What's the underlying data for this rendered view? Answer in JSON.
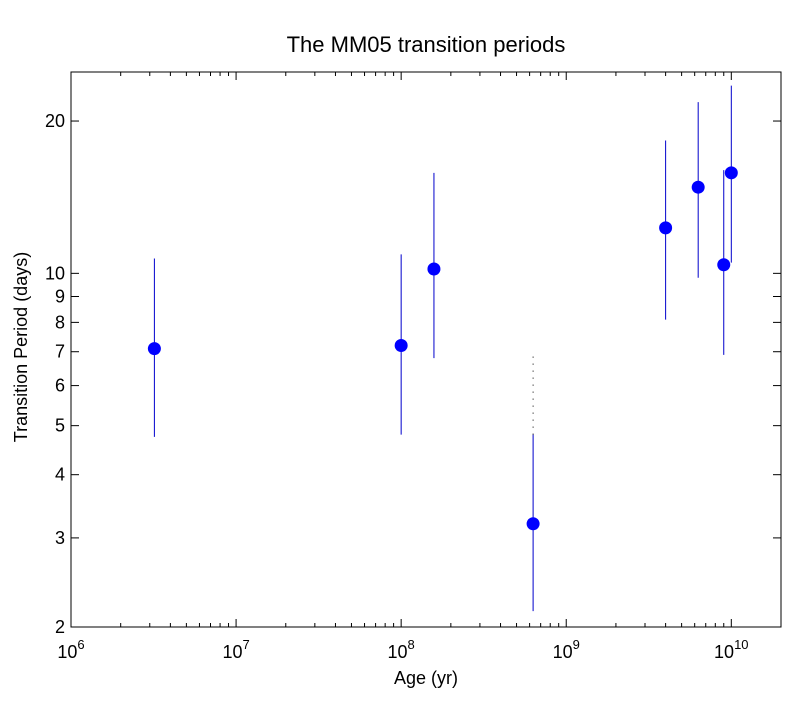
{
  "chart_data": {
    "type": "scatter",
    "title": "The MM05 transition periods",
    "xlabel": "Age (yr)",
    "ylabel": "Transition Period (days)",
    "x_scale": "log",
    "y_scale": "log",
    "xlim": [
      1000000,
      20000000000
    ],
    "ylim": [
      2,
      25
    ],
    "x_ticks": [
      {
        "value": 1000000,
        "base": "10",
        "exp": "6"
      },
      {
        "value": 10000000,
        "base": "10",
        "exp": "7"
      },
      {
        "value": 100000000,
        "base": "10",
        "exp": "8"
      },
      {
        "value": 1000000000,
        "base": "10",
        "exp": "9"
      },
      {
        "value": 10000000000,
        "base": "10",
        "exp": "10"
      }
    ],
    "y_ticks": [
      {
        "value": 2,
        "label": "2"
      },
      {
        "value": 3,
        "label": "3"
      },
      {
        "value": 4,
        "label": "4"
      },
      {
        "value": 5,
        "label": "5"
      },
      {
        "value": 6,
        "label": "6"
      },
      {
        "value": 7,
        "label": "7"
      },
      {
        "value": 8,
        "label": "8"
      },
      {
        "value": 9,
        "label": "9"
      },
      {
        "value": 10,
        "label": "10"
      },
      {
        "value": 20,
        "label": "20"
      }
    ],
    "grid": false,
    "marker_color": "#0000ff",
    "errorbar_color": "#0000cc",
    "points": [
      {
        "x": 3200000,
        "y": 7.1,
        "y_low": 4.75,
        "y_high": 10.7,
        "dotted_above": false
      },
      {
        "x": 100000000,
        "y": 7.2,
        "y_low": 4.8,
        "y_high": 10.9,
        "dotted_above": false
      },
      {
        "x": 158000000,
        "y": 10.2,
        "y_low": 6.8,
        "y_high": 15.8,
        "dotted_above": false
      },
      {
        "x": 630000000,
        "y": 3.2,
        "y_low": 2.15,
        "y_high": 4.8,
        "dotted_above": true,
        "dotted_high": 6.9
      },
      {
        "x": 4000000000,
        "y": 12.3,
        "y_low": 8.1,
        "y_high": 18.3,
        "dotted_above": false
      },
      {
        "x": 6300000000,
        "y": 14.8,
        "y_low": 9.8,
        "y_high": 21.8,
        "dotted_above": false
      },
      {
        "x": 9000000000,
        "y": 10.4,
        "y_low": 6.9,
        "y_high": 16.0,
        "dotted_above": false
      },
      {
        "x": 10000000000,
        "y": 15.8,
        "y_low": 10.5,
        "y_high": 23.5,
        "dotted_above": false
      }
    ]
  }
}
